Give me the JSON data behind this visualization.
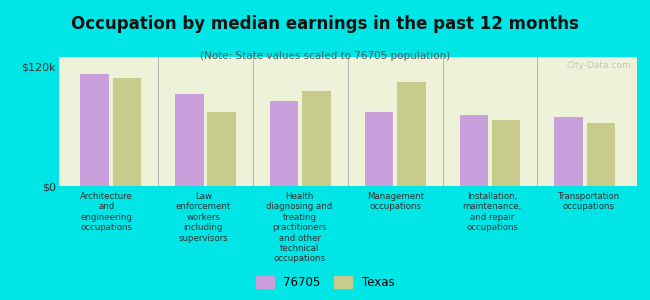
{
  "title": "Occupation by median earnings in the past 12 months",
  "subtitle": "(Note: State values scaled to 76705 population)",
  "background_color": "#00e5e5",
  "plot_bg_color": "#eef2d8",
  "categories": [
    "Architecture\nand\nengineering\noccupations",
    "Law\nenforcement\nworkers\nincluding\nsupervisors",
    "Health\ndiagnosing and\ntreating\npractitioners\nand other\ntechnical\noccupations",
    "Management\noccupations",
    "Installation,\nmaintenance,\nand repair\noccupations",
    "Transportation\noccupations"
  ],
  "values_76705": [
    113000,
    93000,
    86000,
    75000,
    72000,
    70000
  ],
  "values_texas": [
    109000,
    75000,
    96000,
    105000,
    67000,
    63000
  ],
  "color_76705": "#c9a0dc",
  "color_texas": "#c8cc8a",
  "ylim": [
    0,
    130000
  ],
  "yticks": [
    0,
    120000
  ],
  "ytick_labels": [
    "$0",
    "$120k"
  ],
  "legend_76705": "76705",
  "legend_texas": "Texas",
  "watermark": "City-Data.com"
}
